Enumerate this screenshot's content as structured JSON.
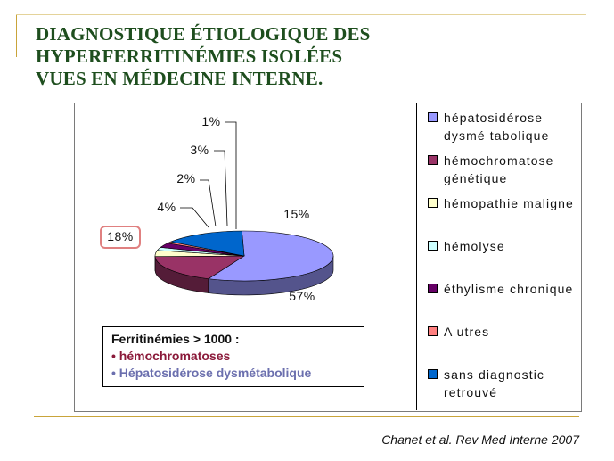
{
  "slide": {
    "title": "DIAGNOSTIQUE ÉTIOLOGIQUE DES\nHYPERFERRITINÉMIES ISOLÉES\nVUES EN MÉDECINE INTERNE.",
    "citation": "Chanet et al. Rev Med Interne 2007"
  },
  "note": {
    "heading": "Ferritinémies > 1000 :",
    "items": [
      {
        "text": "• hémochromatoses",
        "color": "#8b1a3a"
      },
      {
        "text": "• Hépatosidérose dysmétabolique",
        "color": "#6b6fae"
      }
    ]
  },
  "chart_data": {
    "type": "pie",
    "style": "3d",
    "series": [
      {
        "name": "hépatosidérose dysmétabolique",
        "value": 57,
        "label": "57%",
        "color": "#9999ff"
      },
      {
        "name": "hémochromatose génétique",
        "value": 18,
        "label": "18%",
        "color": "#993366"
      },
      {
        "name": "hémopathie maligne",
        "value": 4,
        "label": "4%",
        "color": "#ffffcc"
      },
      {
        "name": "hémolyse",
        "value": 2,
        "label": "2%",
        "color": "#ccffff"
      },
      {
        "name": "éthylisme chronique",
        "value": 3,
        "label": "3%",
        "color": "#660066"
      },
      {
        "name": "Autres",
        "value": 1,
        "label": "1%",
        "color": "#ff8080"
      },
      {
        "name": "sans diagnostic retrouvé",
        "value": 15,
        "label": "15%",
        "color": "#0066cc"
      }
    ],
    "highlighted_label": "18%",
    "highlight_color": "#e08080",
    "legend_position": "right"
  },
  "legend_entries": [
    {
      "text": "hépatosidérose dysmé tabolique",
      "color": "#9999ff"
    },
    {
      "text": "hémochromatose génétique",
      "color": "#993366"
    },
    {
      "text": "hémopathie maligne",
      "color": "#ffffcc"
    },
    {
      "text": "hémolyse",
      "color": "#ccffff"
    },
    {
      "text": "éthylisme chronique",
      "color": "#660066"
    },
    {
      "text": "A utres",
      "color": "#ff8080"
    },
    {
      "text": "sans diagnostic retrouvé",
      "color": "#0066cc"
    }
  ]
}
